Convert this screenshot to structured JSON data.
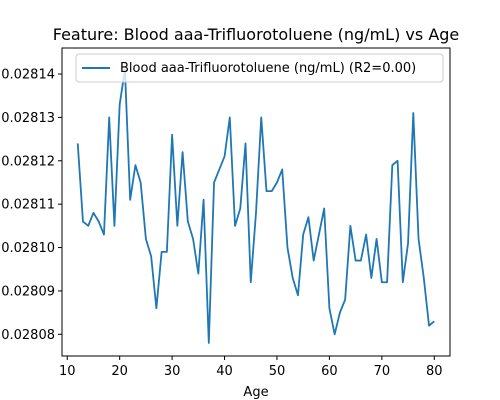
{
  "chart_data": {
    "type": "line",
    "title": "Feature: Blood aaa-Trifluorotoluene (ng/mL) vs Age",
    "xlabel": "Age",
    "ylabel": "",
    "xlim": [
      9,
      83
    ],
    "ylim": [
      0.028075,
      0.028146
    ],
    "x_ticks": [
      10,
      20,
      30,
      40,
      50,
      60,
      70,
      80
    ],
    "x_tick_labels": [
      "10",
      "20",
      "30",
      "40",
      "50",
      "60",
      "70",
      "80"
    ],
    "y_ticks": [
      0.02808,
      0.02809,
      0.0281,
      0.02811,
      0.02812,
      0.02813,
      0.02814
    ],
    "y_tick_labels": [
      "0.02808",
      "0.02809",
      "0.02810",
      "0.02811",
      "0.02812",
      "0.02813",
      "0.02814"
    ],
    "legend_position": "upper-left",
    "series": [
      {
        "name": "Blood aaa-Trifluorotoluene (ng/mL) (R2=0.00)",
        "color": "#1f77b4",
        "x": [
          12,
          13,
          14,
          15,
          16,
          17,
          18,
          19,
          20,
          21,
          22,
          23,
          24,
          25,
          26,
          27,
          28,
          29,
          30,
          31,
          32,
          33,
          34,
          35,
          36,
          37,
          38,
          39,
          40,
          41,
          42,
          43,
          44,
          45,
          46,
          47,
          48,
          49,
          50,
          51,
          52,
          53,
          54,
          55,
          56,
          57,
          58,
          59,
          60,
          61,
          62,
          63,
          64,
          65,
          66,
          67,
          68,
          69,
          70,
          71,
          72,
          73,
          74,
          75,
          76,
          77,
          78,
          79,
          80
        ],
        "y": [
          0.028124,
          0.028106,
          0.028105,
          0.028108,
          0.028106,
          0.028103,
          0.02813,
          0.028105,
          0.028133,
          0.028141,
          0.028111,
          0.028119,
          0.028115,
          0.028102,
          0.028098,
          0.028086,
          0.028099,
          0.028099,
          0.028126,
          0.028105,
          0.028122,
          0.028106,
          0.028102,
          0.028094,
          0.028111,
          0.028078,
          0.028115,
          0.028118,
          0.028121,
          0.02813,
          0.028105,
          0.028109,
          0.028124,
          0.028092,
          0.028108,
          0.02813,
          0.028113,
          0.028113,
          0.028115,
          0.028118,
          0.0281,
          0.028093,
          0.028089,
          0.028103,
          0.028107,
          0.028097,
          0.028103,
          0.028109,
          0.028086,
          0.02808,
          0.028085,
          0.028088,
          0.028105,
          0.028097,
          0.028097,
          0.028103,
          0.028093,
          0.028102,
          0.028092,
          0.028092,
          0.028119,
          0.02812,
          0.028092,
          0.028101,
          0.028131,
          0.028102,
          0.028093,
          0.028082,
          0.028083
        ]
      }
    ]
  }
}
